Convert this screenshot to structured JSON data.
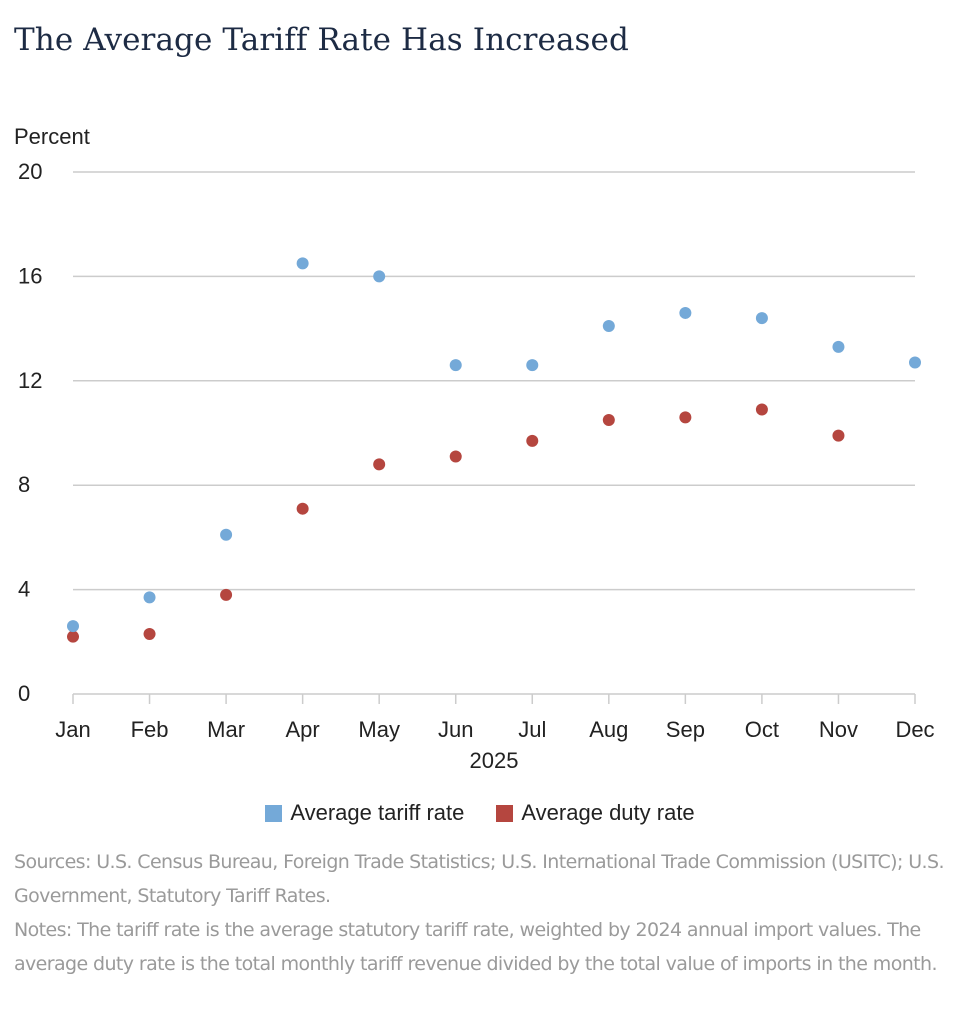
{
  "title": "The Average Tariff Rate Has Increased",
  "chart_data": {
    "type": "scatter",
    "title": "The Average Tariff Rate Has Increased",
    "ylabel": "Percent",
    "xlabel": "2025",
    "ylim": [
      0,
      20
    ],
    "yticks": [
      0,
      4,
      8,
      12,
      16,
      20
    ],
    "grid": true,
    "categories": [
      "Jan",
      "Feb",
      "Mar",
      "Apr",
      "May",
      "Jun",
      "Jul",
      "Aug",
      "Sep",
      "Oct",
      "Nov",
      "Dec"
    ],
    "series": [
      {
        "name": "Average tariff rate",
        "color": "#74a9d8",
        "values": [
          2.6,
          3.7,
          6.1,
          16.5,
          16.0,
          12.6,
          12.6,
          14.1,
          14.6,
          14.4,
          13.3,
          12.7
        ]
      },
      {
        "name": "Average duty rate",
        "color": "#b5463f",
        "values": [
          2.2,
          2.3,
          3.8,
          7.1,
          8.8,
          9.1,
          9.7,
          10.5,
          10.6,
          10.9,
          9.9,
          null
        ]
      }
    ]
  },
  "notes": {
    "sources": "Sources: U.S. Census Bureau, Foreign Trade Statistics; U.S. International Trade Commission (USITC); U.S. Government, Statutory Tariff Rates.",
    "notes": "Notes: The tariff rate is the average statutory tariff rate, weighted by 2024 annual import values. The average duty rate is the total monthly tariff revenue divided by the total value of imports in the month."
  }
}
